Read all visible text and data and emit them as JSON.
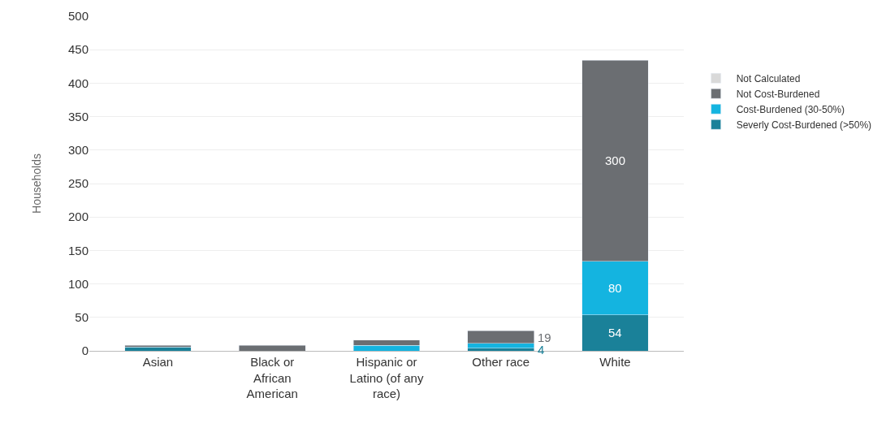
{
  "chart_data": {
    "type": "bar",
    "stacked": true,
    "ylabel": "Households",
    "categories": [
      "Asian",
      "Black or African American",
      "Hispanic or Latino (of any race)",
      "Other race",
      "White"
    ],
    "series": [
      {
        "name": "Severly Cost-Burdened (>50%)",
        "color": "#1a8199",
        "values": [
          6,
          null,
          null,
          4,
          54
        ],
        "value_labels": [
          null,
          null,
          null,
          "4",
          "54"
        ]
      },
      {
        "name": "Cost-Burdened (30-50%)",
        "color": "#14b4e0",
        "values": [
          null,
          null,
          8,
          7,
          80
        ],
        "value_labels": [
          null,
          null,
          null,
          null,
          "80"
        ]
      },
      {
        "name": "Not Cost-Burdened",
        "color": "#6b6e72",
        "values": [
          2,
          8,
          8,
          19,
          300
        ],
        "value_labels": [
          null,
          null,
          null,
          "19",
          "300"
        ]
      },
      {
        "name": "Not Calculated",
        "color": "#d9d9d9",
        "values": [
          null,
          null,
          null,
          null,
          null
        ],
        "value_labels": [
          null,
          null,
          null,
          null,
          null
        ]
      }
    ],
    "ylim": [
      0,
      500
    ],
    "yticks": [
      0,
      50,
      100,
      150,
      200,
      250,
      300,
      350,
      400,
      450,
      500
    ],
    "grid": "y",
    "legend": "right"
  }
}
